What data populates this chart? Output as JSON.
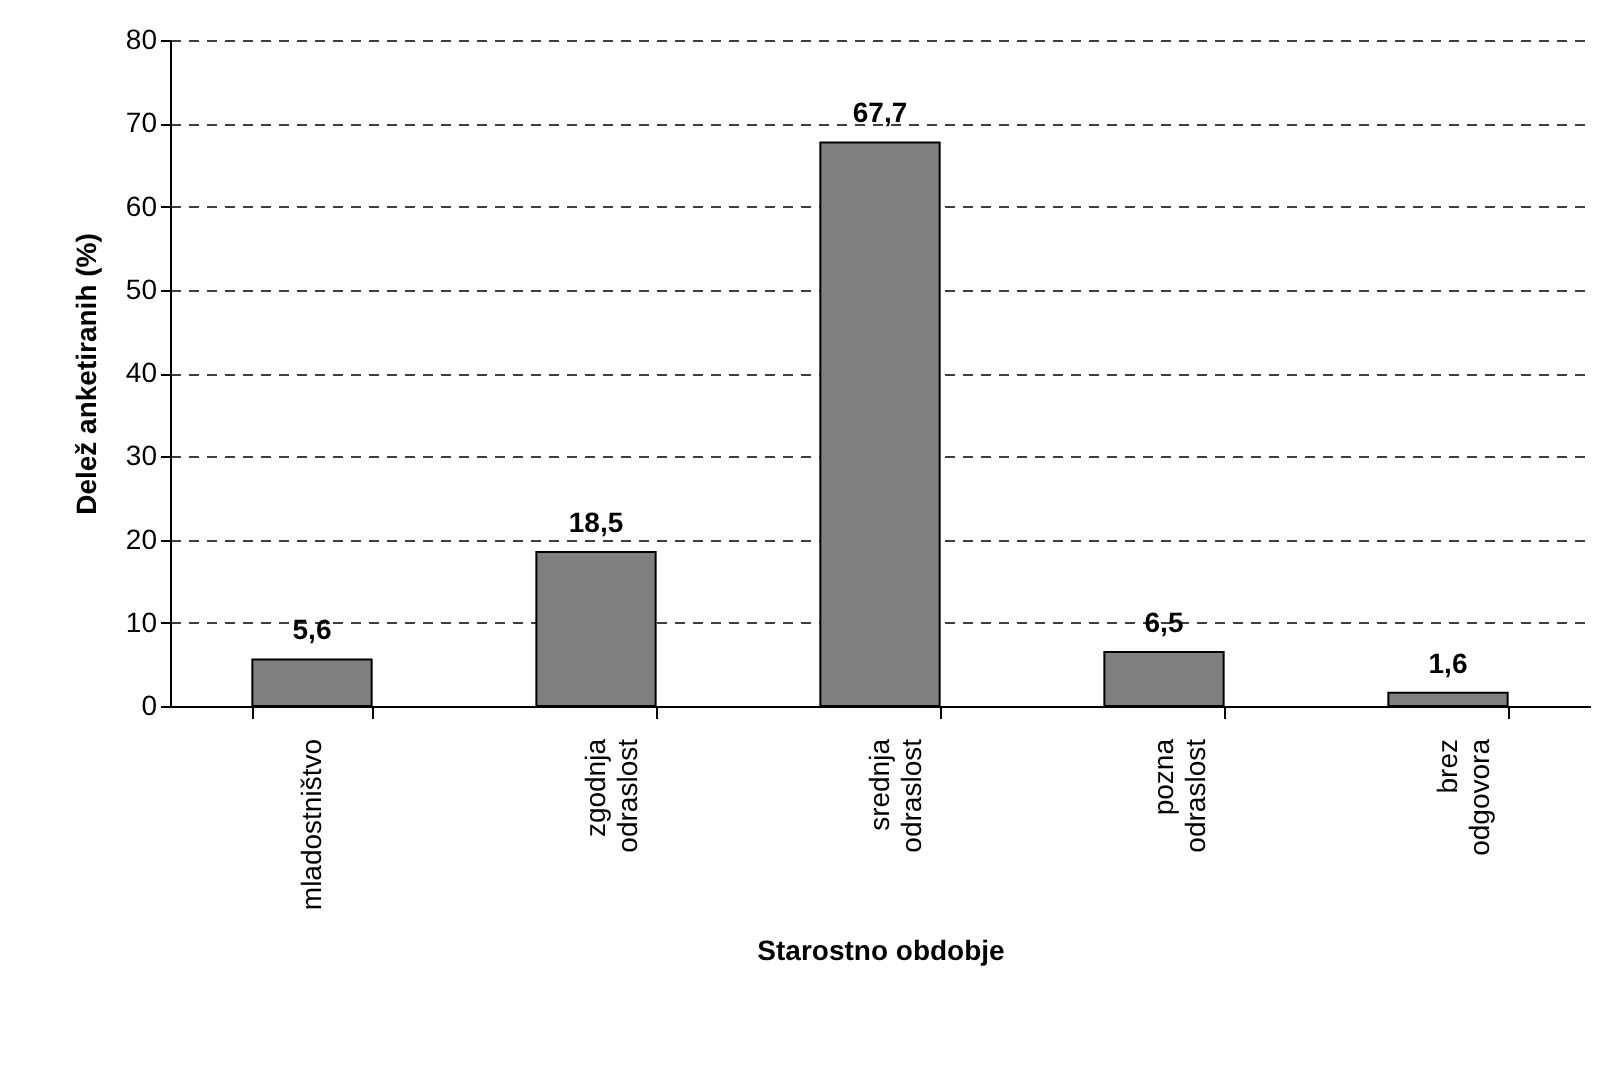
{
  "chart_data": {
    "type": "bar",
    "xlabel": "Starostno obdobje",
    "ylabel": "Delež anketiranih (%)",
    "categories": [
      "mladostništvo",
      "zgodnja odraslost",
      "srednja odraslost",
      "pozna odraslost",
      "brez odgovora"
    ],
    "values": [
      5.6,
      18.5,
      67.7,
      6.5,
      1.6
    ],
    "value_labels": [
      "5,6",
      "18,5",
      "67,7",
      "6,5",
      "1,6"
    ],
    "color": "#808080",
    "ylim": [
      0,
      80
    ],
    "yticks": [
      0,
      10,
      20,
      30,
      40,
      50,
      60,
      70,
      80
    ],
    "grid": "y"
  }
}
